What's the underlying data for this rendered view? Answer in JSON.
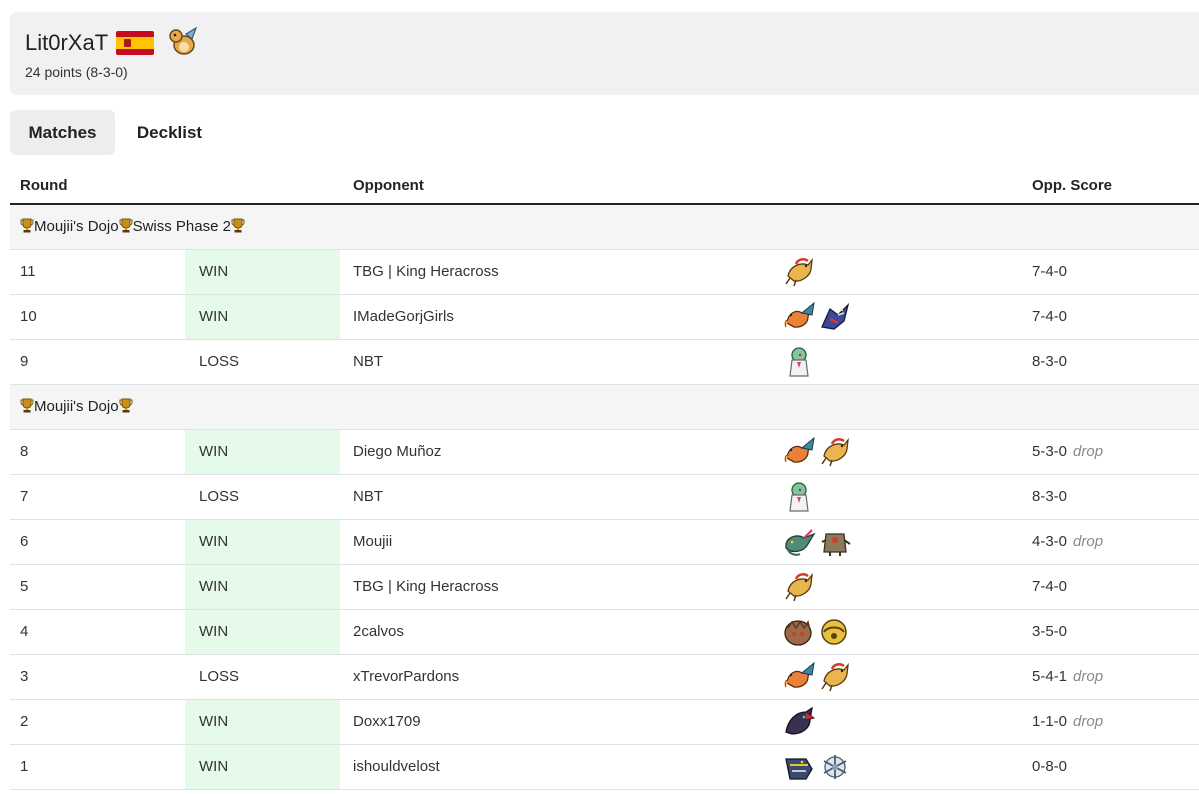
{
  "player": {
    "name": "Lit0rXaT",
    "points": "24 points (8-3-0)",
    "flag_icon": "spain-flag-icon",
    "mascot_icon": "dragonite-sprite-icon"
  },
  "tabs": [
    {
      "label": "Matches",
      "active": true
    },
    {
      "label": "Decklist",
      "active": false
    }
  ],
  "table": {
    "headers": {
      "round": "Round",
      "opponent": "Opponent",
      "score": "Opp. Score"
    },
    "sections": [
      {
        "title_parts": [
          "Moujii's Dojo",
          "Swiss Phase 2"
        ],
        "rows": [
          {
            "round": "11",
            "result": "WIN",
            "opponent": "TBG | King Heracross",
            "sprites": [
              "pidgeot-sprite-icon"
            ],
            "score": "7-4-0",
            "drop": ""
          },
          {
            "round": "10",
            "result": "WIN",
            "opponent": "IMadeGorjGirls",
            "sprites": [
              "charizard-sprite-icon",
              "garchomp-sprite-icon"
            ],
            "score": "7-4-0",
            "drop": ""
          },
          {
            "round": "9",
            "result": "LOSS",
            "opponent": "NBT",
            "sprites": [
              "gardevoir-sprite-icon"
            ],
            "score": "8-3-0",
            "drop": ""
          }
        ]
      },
      {
        "title_parts": [
          "Moujii's Dojo"
        ],
        "rows": [
          {
            "round": "8",
            "result": "WIN",
            "opponent": "Diego Muñoz",
            "sprites": [
              "charizard-sprite-icon",
              "pidgeot-sprite-icon"
            ],
            "score": "5-3-0",
            "drop": "drop"
          },
          {
            "round": "7",
            "result": "LOSS",
            "opponent": "NBT",
            "sprites": [
              "gardevoir-sprite-icon"
            ],
            "score": "8-3-0",
            "drop": ""
          },
          {
            "round": "6",
            "result": "WIN",
            "opponent": "Moujii",
            "sprites": [
              "dragapult-sprite-icon",
              "dusknoir-sprite-icon"
            ],
            "score": "4-3-0",
            "drop": "drop"
          },
          {
            "round": "5",
            "result": "WIN",
            "opponent": "TBG | King Heracross",
            "sprites": [
              "pidgeot-sprite-icon"
            ],
            "score": "7-4-0",
            "drop": ""
          },
          {
            "round": "4",
            "result": "WIN",
            "opponent": "2calvos",
            "sprites": [
              "terapagos-sprite-icon",
              "ball-sprite-icon"
            ],
            "score": "3-5-0",
            "drop": ""
          },
          {
            "round": "3",
            "result": "LOSS",
            "opponent": "xTrevorPardons",
            "sprites": [
              "charizard-sprite-icon",
              "pidgeot-sprite-icon"
            ],
            "score": "5-4-1",
            "drop": "drop"
          },
          {
            "round": "2",
            "result": "WIN",
            "opponent": "Doxx1709",
            "sprites": [
              "zoroark-sprite-icon"
            ],
            "score": "1-1-0",
            "drop": "drop"
          },
          {
            "round": "1",
            "result": "WIN",
            "opponent": "ishouldvelost",
            "sprites": [
              "archaludon-sprite-icon",
              "snowflake-sprite-icon"
            ],
            "score": "0-8-0",
            "drop": ""
          }
        ]
      }
    ]
  },
  "colors": {
    "win_bg": "#e6fae9",
    "header_bg": "#f1f1f3",
    "section_bg": "#f5f5f6",
    "trophy": "#c8901a"
  }
}
